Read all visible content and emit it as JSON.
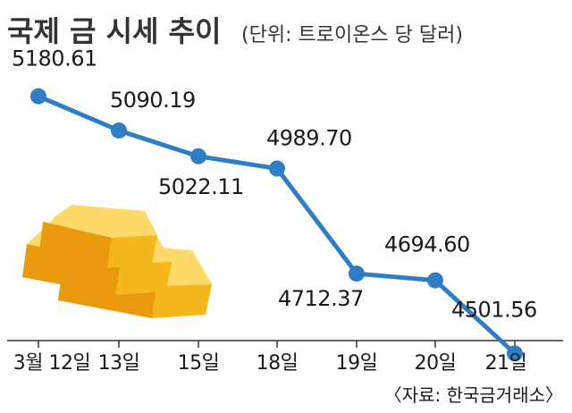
{
  "title": "국제 금 시세 추이",
  "unit": "(단위: 트로이온스 당 달러)",
  "source": "〈자료: 한국금거래소〉",
  "colors": {
    "line": "#2f7dc4",
    "marker": "#2f7dc4",
    "axis": "#333333",
    "gold": "#f2b318"
  },
  "chart_data": {
    "type": "line",
    "title": "국제 금 시세 추이",
    "unit": "(단위: 트로이온스 당 달러)",
    "categories": [
      "3월 12일",
      "13일",
      "15일",
      "18일",
      "19일",
      "20일",
      "21일"
    ],
    "values": [
      5180.61,
      5090.19,
      5022.11,
      4989.7,
      4712.37,
      4694.6,
      4501.56
    ],
    "value_labels": [
      "5180.61",
      "5090.19",
      "5022.11",
      "4989.70",
      "4712.37",
      "4694.60",
      "4501.56"
    ],
    "ylim": [
      4420,
      5260
    ],
    "grid": false,
    "legend": "none",
    "source": "〈자료: 한국금거래소〉"
  }
}
